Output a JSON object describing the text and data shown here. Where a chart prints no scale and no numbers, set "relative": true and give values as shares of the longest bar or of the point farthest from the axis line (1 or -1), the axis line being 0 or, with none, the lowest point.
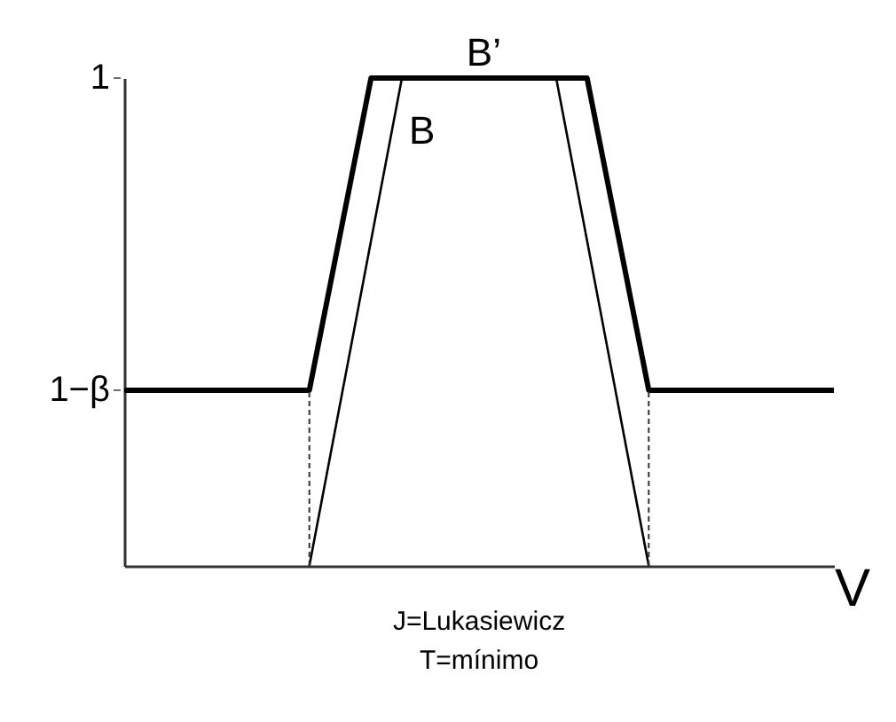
{
  "chart_data": {
    "type": "line",
    "xlabel": "V",
    "relative": true,
    "categories": [
      null,
      null,
      null,
      null,
      null,
      null,
      null,
      null,
      null,
      null,
      null,
      null,
      null,
      null,
      null,
      null,
      null,
      null,
      null,
      null,
      null,
      null,
      null,
      null
    ],
    "series": [
      {
        "name": "B’",
        "color": "#000000",
        "values": [
          0.36,
          0.36,
          0.36,
          0.36,
          0.36,
          0.36,
          0.36,
          0.68,
          1,
          1,
          1,
          1,
          1,
          1,
          1,
          1,
          0.68,
          0.36,
          0.36,
          0.36,
          0.36,
          0.36,
          0.36,
          0.36
        ]
      },
      {
        "name": "B",
        "color": "#000000",
        "values": [
          null,
          null,
          null,
          null,
          null,
          null,
          0,
          0.333,
          0.667,
          1,
          1,
          1,
          1,
          1,
          1,
          0.667,
          0.333,
          0,
          null,
          null,
          null,
          null,
          null,
          null
        ]
      }
    ],
    "annotations": [
      "1",
      "1−β",
      "J=Lukasiewicz",
      "T=mínimo"
    ]
  }
}
